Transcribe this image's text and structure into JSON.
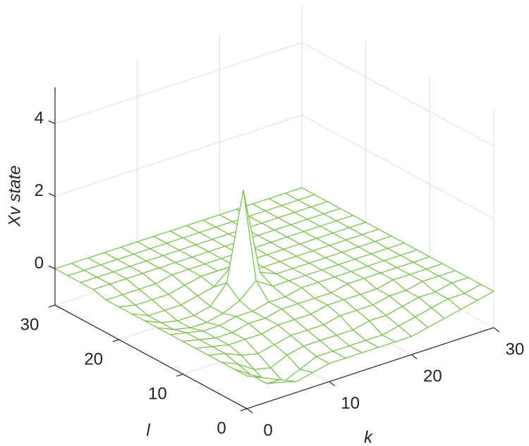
{
  "chart_data": {
    "type": "surface",
    "xlabel": "k",
    "ylabel": "l",
    "zlabel": "Xv state",
    "x": [
      0,
      2,
      4,
      6,
      8,
      10,
      12,
      14,
      16,
      18,
      20,
      22,
      24,
      26,
      28,
      30
    ],
    "y": [
      0,
      2,
      4,
      6,
      8,
      10,
      12,
      14,
      16,
      18,
      20,
      22,
      24,
      26,
      28,
      30
    ],
    "z": [
      [
        -0.1,
        -0.3,
        -0.5,
        -0.7,
        -0.6,
        -0.5,
        -0.5,
        -0.5,
        -0.5,
        -0.5,
        -0.5,
        -0.4,
        -0.3,
        -0.2,
        -0.1,
        0
      ],
      [
        -0.1,
        -0.4,
        -0.8,
        -0.9,
        -0.7,
        -0.5,
        -0.5,
        -0.5,
        -0.5,
        -0.5,
        -0.4,
        -0.3,
        -0.2,
        -0.1,
        -0.1,
        0
      ],
      [
        -0.1,
        -0.3,
        -0.6,
        -0.7,
        -0.5,
        -0.4,
        -0.4,
        -0.4,
        -0.4,
        -0.3,
        -0.3,
        -0.2,
        -0.1,
        -0.1,
        0,
        0
      ],
      [
        -0.1,
        -0.2,
        -0.4,
        -0.5,
        -0.4,
        -0.3,
        -0.3,
        -0.3,
        -0.2,
        -0.2,
        -0.2,
        -0.1,
        -0.1,
        0,
        0,
        0
      ],
      [
        -0.1,
        -0.2,
        -0.3,
        -0.3,
        -0.3,
        -0.2,
        -0.2,
        -0.2,
        -0.1,
        -0.1,
        -0.1,
        -0.1,
        0,
        0,
        0,
        0
      ],
      [
        -0.1,
        -0.2,
        -0.3,
        -0.3,
        -0.2,
        -0.2,
        -0.1,
        -0.1,
        -0.1,
        -0.1,
        0,
        0,
        0,
        0,
        0,
        0
      ],
      [
        -0.1,
        -0.2,
        -0.3,
        -0.3,
        -0.2,
        -0.2,
        -0.1,
        -0.1,
        0,
        0,
        0,
        0,
        0,
        0,
        0,
        0
      ],
      [
        -0.1,
        -0.3,
        -0.4,
        -0.4,
        -0.3,
        -0.1,
        0.3,
        0,
        0,
        0,
        0,
        0,
        0,
        0,
        0,
        0
      ],
      [
        -0.1,
        -0.3,
        -0.4,
        -0.4,
        -0.3,
        0.2,
        2.6,
        0.2,
        0,
        0,
        0,
        0,
        0,
        0,
        0,
        0
      ],
      [
        -0.1,
        -0.3,
        -0.3,
        -0.3,
        -0.2,
        -0.1,
        0.3,
        0,
        0,
        0,
        0,
        0,
        0,
        0,
        0,
        0
      ],
      [
        -0.1,
        -0.2,
        -0.2,
        -0.2,
        -0.1,
        0,
        0,
        0,
        0,
        0,
        0,
        0,
        0,
        0,
        0,
        0
      ],
      [
        -0.1,
        -0.1,
        -0.1,
        -0.1,
        0,
        0,
        0,
        0,
        0,
        0,
        0,
        0,
        0,
        0,
        0,
        0
      ],
      [
        0,
        0,
        0,
        0,
        0,
        0,
        0,
        0,
        0,
        0,
        0,
        0,
        0,
        0,
        0,
        0
      ],
      [
        0,
        0,
        0,
        0,
        0,
        0,
        0,
        0,
        0,
        0,
        0,
        0,
        0,
        0,
        0,
        0
      ],
      [
        0,
        0,
        0,
        0,
        0,
        0,
        0,
        0,
        0,
        0,
        0,
        0,
        0,
        0,
        0,
        0
      ],
      [
        0,
        0,
        0,
        0,
        0,
        0,
        0,
        0,
        0,
        0,
        0,
        0,
        0,
        0,
        0,
        0
      ]
    ],
    "color": "#77c04a",
    "xlim": [
      0,
      30
    ],
    "ylim": [
      0,
      30
    ],
    "zlim": [
      -1,
      5
    ],
    "xticks": [
      0,
      10,
      20,
      30
    ],
    "yticks": [
      0,
      10,
      20,
      30
    ],
    "zticks": [
      0,
      2,
      4
    ],
    "grid": true
  }
}
